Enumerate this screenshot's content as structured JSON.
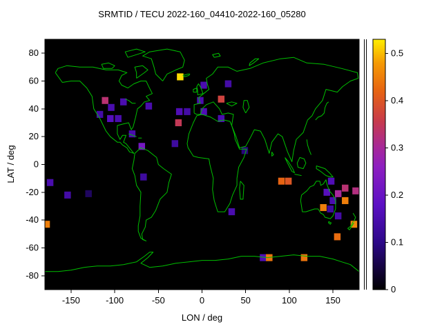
{
  "chart_data": {
    "type": "heatmap",
    "title": "SRMTID / TECU 2022-160_04410-2022-160_05280",
    "xlabel": "LON / deg",
    "ylabel": "LAT / deg",
    "xlim": [
      -180,
      180
    ],
    "ylim": [
      -90,
      90
    ],
    "xticks": [
      -150,
      -100,
      -50,
      0,
      50,
      100,
      150
    ],
    "yticks": [
      -80,
      -60,
      -40,
      -20,
      0,
      20,
      40,
      60,
      80
    ],
    "colorbar": {
      "min": 0,
      "max": 0.53,
      "ticks": [
        0,
        0.1,
        0.2,
        0.3,
        0.4,
        0.5
      ]
    },
    "cell_size_deg": {
      "lon": 7.5,
      "lat": 5
    },
    "plot_bg": "#000000",
    "coastline_color": "#00c000",
    "grid": false,
    "legend_position": "right-colorbar",
    "palette": [
      {
        "v": 0.0,
        "color": "#000000"
      },
      {
        "v": 0.1,
        "color": "#2c0888"
      },
      {
        "v": 0.18,
        "color": "#5c10c4"
      },
      {
        "v": 0.26,
        "color": "#8d1fc0"
      },
      {
        "v": 0.3,
        "color": "#a6289a"
      },
      {
        "v": 0.36,
        "color": "#c93c48"
      },
      {
        "v": 0.42,
        "color": "#e66312"
      },
      {
        "v": 0.48,
        "color": "#f59a04"
      },
      {
        "v": 0.53,
        "color": "#ffee00"
      }
    ],
    "cells": [
      {
        "lon": -25,
        "lat": 63,
        "v": 0.52
      },
      {
        "lon": 2,
        "lat": 57,
        "v": 0.15
      },
      {
        "lon": 30,
        "lat": 58,
        "v": 0.14
      },
      {
        "lon": -2,
        "lat": 46,
        "v": 0.15
      },
      {
        "lon": 22,
        "lat": 47,
        "v": 0.37
      },
      {
        "lon": -111,
        "lat": 46,
        "v": 0.33
      },
      {
        "lon": -90,
        "lat": 45,
        "v": 0.15
      },
      {
        "lon": -104,
        "lat": 41,
        "v": 0.15
      },
      {
        "lon": -61,
        "lat": 42,
        "v": 0.15
      },
      {
        "lon": -117,
        "lat": 36,
        "v": 0.14
      },
      {
        "lon": -26,
        "lat": 38,
        "v": 0.16
      },
      {
        "lon": -17,
        "lat": 38,
        "v": 0.14
      },
      {
        "lon": 2,
        "lat": 38,
        "v": 0.16
      },
      {
        "lon": 22,
        "lat": 33,
        "v": 0.15
      },
      {
        "lon": -105,
        "lat": 33,
        "v": 0.17
      },
      {
        "lon": -96,
        "lat": 33,
        "v": 0.15
      },
      {
        "lon": -27,
        "lat": 30,
        "v": 0.35
      },
      {
        "lon": -80,
        "lat": 22,
        "v": 0.15
      },
      {
        "lon": -69,
        "lat": 13,
        "v": 0.22
      },
      {
        "lon": -31,
        "lat": 15,
        "v": 0.13
      },
      {
        "lon": 49,
        "lat": 10,
        "v": 0.09
      },
      {
        "lon": -174,
        "lat": -13,
        "v": 0.15
      },
      {
        "lon": -154,
        "lat": -22,
        "v": 0.14
      },
      {
        "lon": -130,
        "lat": -21,
        "v": 0.07
      },
      {
        "lon": -67,
        "lat": -9,
        "v": 0.13
      },
      {
        "lon": 91,
        "lat": -12,
        "v": 0.42
      },
      {
        "lon": 99,
        "lat": -12,
        "v": 0.4
      },
      {
        "lon": 148,
        "lat": -12,
        "v": 0.16
      },
      {
        "lon": 164,
        "lat": -17,
        "v": 0.33
      },
      {
        "lon": 176,
        "lat": -19,
        "v": 0.32
      },
      {
        "lon": 143,
        "lat": -20,
        "v": 0.17
      },
      {
        "lon": 156,
        "lat": -21,
        "v": 0.3
      },
      {
        "lon": 150,
        "lat": -26,
        "v": 0.15
      },
      {
        "lon": 164,
        "lat": -26,
        "v": 0.45
      },
      {
        "lon": 139,
        "lat": -31,
        "v": 0.45
      },
      {
        "lon": 147,
        "lat": -32,
        "v": 0.13
      },
      {
        "lon": 34,
        "lat": -34,
        "v": 0.15
      },
      {
        "lon": 156,
        "lat": -37,
        "v": 0.14
      },
      {
        "lon": 174,
        "lat": -43,
        "v": 0.46
      },
      {
        "lon": -178,
        "lat": -43,
        "v": 0.45
      },
      {
        "lon": 155,
        "lat": -52,
        "v": 0.43
      },
      {
        "lon": 70,
        "lat": -67,
        "v": 0.16
      },
      {
        "lon": 77,
        "lat": -67,
        "v": 0.44
      },
      {
        "lon": 117,
        "lat": -67,
        "v": 0.44
      }
    ]
  }
}
